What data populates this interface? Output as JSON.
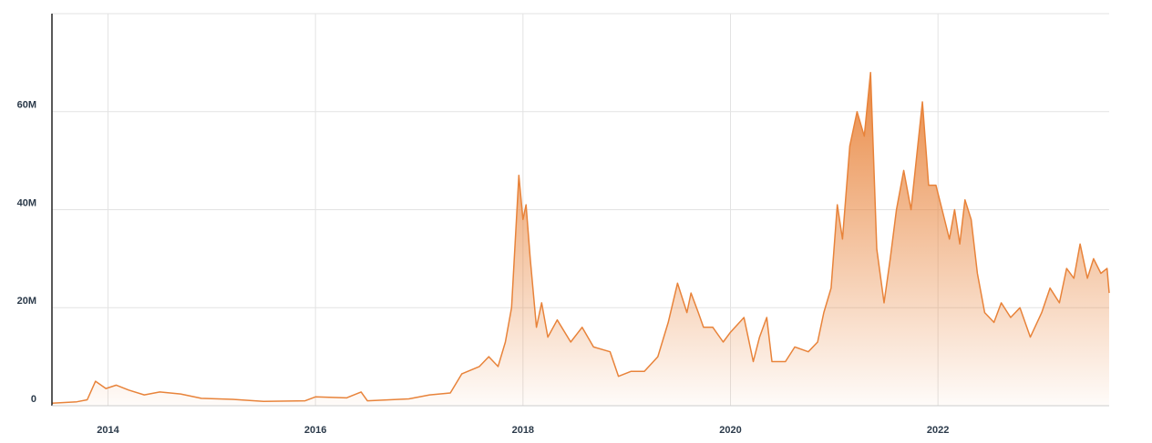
{
  "chart_data": {
    "type": "area",
    "color": "#e8833a",
    "x": [
      2013.46,
      2013.7,
      2013.8,
      2013.88,
      2013.98,
      2014.08,
      2014.2,
      2014.35,
      2014.5,
      2014.7,
      2014.9,
      2015.2,
      2015.5,
      2015.9,
      2016.0,
      2016.3,
      2016.44,
      2016.5,
      2016.9,
      2017.1,
      2017.3,
      2017.41,
      2017.58,
      2017.67,
      2017.76,
      2017.83,
      2017.89,
      2017.96,
      2018.0,
      2018.03,
      2018.07,
      2018.13,
      2018.18,
      2018.24,
      2018.33,
      2018.46,
      2018.57,
      2018.68,
      2018.84,
      2018.92,
      2019.04,
      2019.17,
      2019.3,
      2019.4,
      2019.49,
      2019.58,
      2019.62,
      2019.69,
      2019.74,
      2019.83,
      2019.93,
      2020.0,
      2020.13,
      2020.22,
      2020.28,
      2020.35,
      2020.4,
      2020.53,
      2020.62,
      2020.75,
      2020.84,
      2020.9,
      2020.97,
      2021.03,
      2021.08,
      2021.15,
      2021.22,
      2021.29,
      2021.35,
      2021.41,
      2021.48,
      2021.54,
      2021.6,
      2021.67,
      2021.74,
      2021.85,
      2021.91,
      2021.98,
      2022.04,
      2022.11,
      2022.16,
      2022.21,
      2022.26,
      2022.32,
      2022.38,
      2022.45,
      2022.54,
      2022.61,
      2022.7,
      2022.79,
      2022.89,
      2023.0,
      2023.08,
      2023.17,
      2023.24,
      2023.31,
      2023.37,
      2023.44,
      2023.5,
      2023.57,
      2023.63,
      2023.65
    ],
    "values": [
      500000,
      800000,
      1200000,
      5000000,
      3500000,
      4200000,
      3200000,
      2200000,
      2800000,
      2400000,
      1500000,
      1300000,
      900000,
      1000000,
      1800000,
      1600000,
      2800000,
      1000000,
      1400000,
      2200000,
      2600000,
      6500000,
      8000000,
      10000000,
      8000000,
      13000000,
      20000000,
      47000000,
      38000000,
      41000000,
      30000000,
      16000000,
      21000000,
      14000000,
      17500000,
      13000000,
      16000000,
      12000000,
      11000000,
      6000000,
      7000000,
      7000000,
      10000000,
      17000000,
      25000000,
      19000000,
      23000000,
      19000000,
      16000000,
      16000000,
      13000000,
      15000000,
      18000000,
      9000000,
      14000000,
      18000000,
      9000000,
      9000000,
      12000000,
      11000000,
      13000000,
      19000000,
      24000000,
      41000000,
      34000000,
      53000000,
      60000000,
      55000000,
      68000000,
      32000000,
      21000000,
      30000000,
      40000000,
      48000000,
      40000000,
      62000000,
      45000000,
      45000000,
      40000000,
      34000000,
      40000000,
      33000000,
      42000000,
      38000000,
      27000000,
      19000000,
      17000000,
      21000000,
      18000000,
      20000000,
      14000000,
      19000000,
      24000000,
      21000000,
      28000000,
      26000000,
      33000000,
      26000000,
      30000000,
      27000000,
      28000000,
      23000000
    ],
    "xlim": [
      2013.46,
      2023.65
    ],
    "xticks": [
      2014,
      2016,
      2018,
      2020,
      2022
    ],
    "ylim": [
      0,
      80000000
    ],
    "yticks": [
      0,
      {
        "value": 20000000,
        "label": "20M"
      },
      {
        "value": 40000000,
        "label": "40M"
      },
      {
        "value": 60000000,
        "label": "60M"
      }
    ],
    "grid": true
  }
}
